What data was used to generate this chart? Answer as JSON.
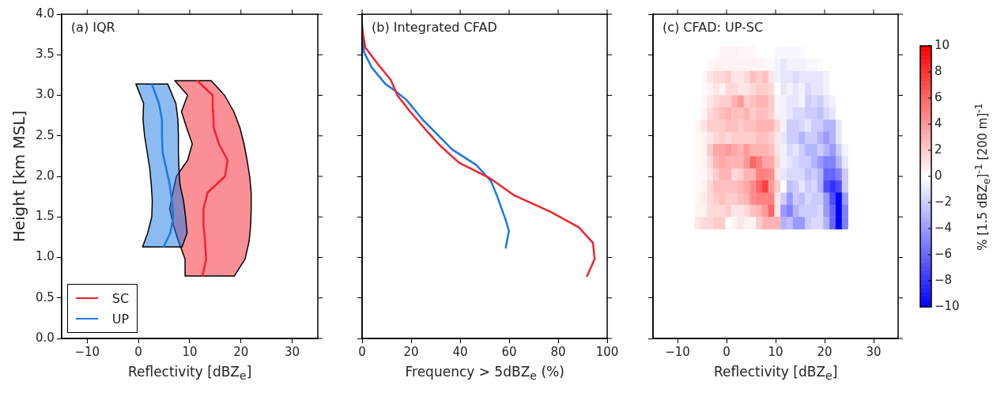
{
  "chart_data": [
    {
      "type": "line",
      "title": "(a) IQR",
      "xlabel": "Reflectivity [dBZ$_{e}$]",
      "ylabel": "Height [km MSL]",
      "orientation": "horizontal",
      "marker": "none",
      "legend": "bottom left",
      "xlim": [
        -15,
        35
      ],
      "xticks": [
        -10,
        0,
        10,
        20,
        30
      ],
      "ylim": [
        0,
        4
      ],
      "yticks": [
        {
          "value": 0,
          "label": "0.0"
        },
        0.5,
        {
          "value": 1,
          "label": "1.0"
        },
        1.5,
        {
          "value": 2,
          "label": "2.0"
        },
        2.5,
        {
          "value": 3,
          "label": "3.0"
        },
        3.5,
        {
          "value": 4,
          "label": "4.0"
        }
      ],
      "series": [
        {
          "name": "SC",
          "color": "#f5222d",
          "x": [
            0.77,
            0.98,
            1.2,
            1.4,
            1.6,
            1.8,
            2.0,
            2.2,
            2.4,
            2.6,
            2.8,
            3.0,
            3.18
          ],
          "values": [
            12.5,
            13.2,
            13.0,
            12.7,
            12.7,
            13.5,
            16.9,
            17.4,
            15.7,
            14.7,
            14.6,
            14.5,
            11.5
          ],
          "lower": [
            9.1,
            9.1,
            7.8,
            6.8,
            6.1,
            6.7,
            7.4,
            9.6,
            10.5,
            9.4,
            8.4,
            9.6,
            7.1
          ],
          "upper": [
            18.7,
            20.8,
            21.6,
            21.9,
            22.0,
            22.0,
            21.7,
            21.2,
            20.6,
            19.8,
            18.6,
            16.8,
            14.2
          ]
        },
        {
          "name": "UP",
          "color": "#1a78e6",
          "x": [
            1.13,
            1.3,
            1.5,
            1.7,
            1.9,
            2.1,
            2.3,
            2.5,
            2.7,
            2.9,
            3.14
          ],
          "values": [
            4.9,
            6.2,
            6.8,
            6.5,
            6.1,
            5.4,
            4.7,
            4.6,
            4.6,
            4.0,
            2.6
          ],
          "lower": [
            0.8,
            1.8,
            2.6,
            2.7,
            2.5,
            2.2,
            1.7,
            1.2,
            0.9,
            1.0,
            -0.5
          ],
          "upper": [
            8.5,
            9.5,
            9.2,
            8.8,
            8.1,
            7.9,
            7.8,
            7.8,
            7.7,
            7.3,
            5.7
          ]
        }
      ]
    },
    {
      "type": "line",
      "title": "(b) Integrated CFAD",
      "xlabel": "Frequency > 5dBZ$_{e}$ (%)",
      "orientation": "horizontal",
      "marker": "none",
      "tick_labels": "x",
      "xlim": [
        0,
        100
      ],
      "xticks": [
        0,
        20,
        40,
        60,
        80,
        100
      ],
      "ylim": [
        0,
        4
      ],
      "yticks": [
        0,
        0.5,
        1,
        1.5,
        2,
        2.5,
        3,
        3.5,
        4
      ],
      "series": [
        {
          "color": "#f5222d",
          "x": [
            3.83,
            3.59,
            3.37,
            3.19,
            3.0,
            2.81,
            2.58,
            2.38,
            2.17,
            1.98,
            1.77,
            1.56,
            1.37,
            1.18,
            0.98,
            0.77
          ],
          "values": [
            0,
            1.3,
            6.8,
            11.7,
            14.4,
            19.3,
            25.8,
            31.8,
            39.5,
            52,
            61.8,
            77.1,
            88.5,
            94.2,
            94.9,
            91.8
          ]
        },
        {
          "color": "#1a78e6",
          "x": [
            3.89,
            3.53,
            3.34,
            3.14,
            3.06,
            2.94,
            2.7,
            2.33,
            2.14,
            1.94,
            1.74,
            1.46,
            1.33,
            1.12
          ],
          "values": [
            0,
            0.8,
            4,
            9.5,
            13.3,
            18.2,
            24.7,
            36.8,
            46.6,
            52.6,
            55.3,
            58.6,
            59.9,
            58.6
          ]
        }
      ]
    },
    {
      "type": "heatmap",
      "title": "(c) CFAD: UP-SC",
      "xlabel": "Reflectivity [dBZ$_{e}$]",
      "clabel": "% [1.5 dBZ$_{e}$]$^{-1}$ [200 m]$^{-1}$",
      "tick_labels": "x",
      "xlim": [
        -15,
        35
      ],
      "xticks": [
        -10,
        0,
        10,
        20,
        30
      ],
      "ylim": [
        0,
        4
      ],
      "yticks": [
        0,
        0.5,
        1,
        1.5,
        2,
        2.5,
        3,
        3.5,
        4
      ],
      "clim": [
        -10,
        10
      ],
      "cticks": [
        -10,
        -8,
        -6,
        -4,
        -2,
        0,
        2,
        4,
        6,
        8,
        10
      ],
      "x": [
        -5.875,
        -4.625,
        -3.375,
        -2.125,
        -0.875,
        0.375,
        1.625,
        2.875,
        4.125,
        5.375,
        6.625,
        7.875,
        9.125,
        10.375,
        11.625,
        12.875,
        14.125,
        15.375,
        16.625,
        17.875,
        19.125,
        20.375,
        21.625,
        22.875,
        24.125
      ],
      "y": [
        3.525,
        3.375,
        3.225,
        3.075,
        2.925,
        2.775,
        2.625,
        2.475,
        2.325,
        2.175,
        2.025,
        1.875,
        1.725,
        1.575,
        1.425
      ],
      "cells": [
        [
          0,
          0,
          0,
          0,
          0.5,
          0.5,
          0.5,
          0.3,
          0.3,
          0.3,
          0,
          0,
          0,
          -0.3,
          -0.3,
          -0.3,
          -0.3,
          -0.2,
          0,
          0,
          0,
          0,
          0,
          0,
          0
        ],
        [
          0,
          0,
          0.3,
          0.5,
          0.5,
          0.5,
          0.5,
          0.5,
          0.5,
          0.5,
          0.5,
          0.3,
          0.2,
          -0.5,
          -1,
          -0.5,
          -0.5,
          -0.5,
          -0.3,
          -0.3,
          -0.2,
          0,
          0,
          0,
          0
        ],
        [
          0,
          0.2,
          1,
          1.5,
          1.5,
          2,
          1,
          1,
          1.5,
          2.5,
          2,
          2.5,
          1,
          -0.5,
          -1,
          -1,
          -1.5,
          -1,
          -1,
          -1,
          -1,
          -0.5,
          0,
          0,
          0
        ],
        [
          0,
          0.2,
          0.5,
          1,
          0.5,
          1.5,
          1.5,
          1,
          1,
          1.5,
          2,
          2,
          1.5,
          0,
          -1,
          -0.5,
          -1,
          -0.5,
          -1.5,
          -1,
          -1,
          -0.5,
          0,
          0,
          0
        ],
        [
          0,
          0.3,
          1,
          1.5,
          2,
          2,
          3,
          4,
          2,
          2.5,
          3,
          3,
          2,
          0.5,
          -0.5,
          -1,
          -1,
          -0.5,
          -2,
          -1.5,
          -2,
          -1,
          -0.5,
          0,
          0
        ],
        [
          0,
          0.5,
          1.5,
          2,
          2.5,
          3,
          2.5,
          2.5,
          3,
          2,
          2.5,
          2.5,
          2,
          0.5,
          -0.5,
          -1,
          -1.5,
          -1.5,
          -2,
          -2,
          -2.5,
          -1.5,
          -1,
          0,
          0
        ],
        [
          0.3,
          1,
          2,
          2,
          2,
          2.5,
          2.5,
          2,
          2.5,
          2.5,
          3,
          3,
          3,
          1.5,
          -0.5,
          -2,
          -2,
          -1.5,
          -1,
          -2,
          -2,
          -3,
          -3,
          -1,
          0
        ],
        [
          0.2,
          0.5,
          1,
          1.5,
          2,
          1.5,
          2,
          2,
          2,
          2,
          2.5,
          2.5,
          2,
          1,
          -1,
          -2,
          -2,
          -3,
          -2,
          -2,
          -3,
          -4,
          -3,
          -1,
          0
        ],
        [
          0.2,
          0.5,
          2,
          3.5,
          3.5,
          4,
          3.5,
          3,
          4,
          3,
          3,
          3,
          2.5,
          1,
          -0.5,
          -1.5,
          -1,
          -2,
          -3,
          -3,
          -2,
          -3,
          -4,
          -2,
          -0.5
        ],
        [
          0.2,
          0.5,
          1.5,
          3,
          3.5,
          3,
          3,
          3,
          4,
          6,
          5,
          3.5,
          3.5,
          1.5,
          -0.5,
          -1,
          -1.5,
          -2,
          -2,
          -3,
          -4,
          -5,
          -5,
          -3,
          -1
        ],
        [
          0.2,
          0.3,
          1,
          2,
          3,
          3,
          1.5,
          2,
          3,
          3,
          5,
          5,
          4.5,
          1,
          -1,
          -1.5,
          -1.5,
          -1.5,
          -2.5,
          -2,
          -3,
          -6,
          -6,
          -5,
          -2
        ],
        [
          0.2,
          0.5,
          1.5,
          2.5,
          2.5,
          2.5,
          2.5,
          3,
          3.5,
          4.5,
          6,
          7.5,
          4,
          2,
          0,
          -2.5,
          -2,
          -1,
          -2,
          -1.5,
          -3,
          -7,
          -8,
          -7,
          -2
        ],
        [
          0.3,
          0.8,
          1.5,
          2,
          2.5,
          2,
          2,
          2.5,
          3,
          4.5,
          5,
          5,
          5,
          1,
          -2,
          -4,
          -2,
          -2.5,
          -1.5,
          -2,
          -2,
          -4,
          -7,
          -10,
          -4
        ],
        [
          0.5,
          0.5,
          1.5,
          1.5,
          1.5,
          2,
          1,
          1,
          1.5,
          2.5,
          3,
          4,
          6,
          1,
          -4,
          -5,
          -3,
          -2,
          -2,
          -2,
          -1.5,
          -4,
          -6,
          -10,
          -5
        ],
        [
          1,
          1.5,
          1.5,
          2,
          2,
          0,
          0.5,
          1,
          0.5,
          0.5,
          2,
          3,
          3,
          3,
          -3,
          -2.5,
          -4,
          -4,
          -2,
          -1.5,
          -1.5,
          -3,
          -6,
          -10,
          -5
        ]
      ]
    }
  ]
}
